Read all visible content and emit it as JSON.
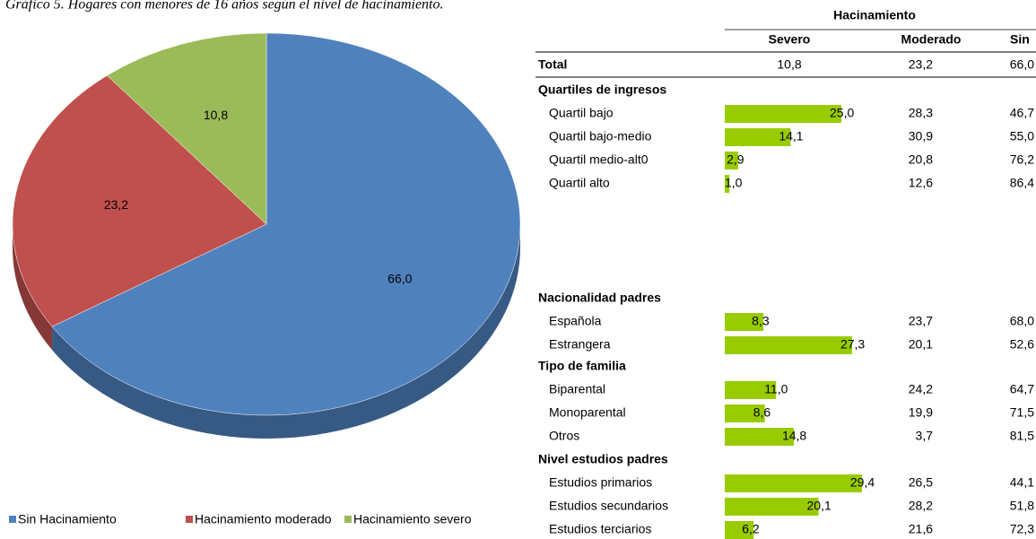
{
  "title": "Gráfico 5. Hogares con menores de 16 años según el nivel de hacinamiento.",
  "chart_data": {
    "type": "pie",
    "categories": [
      "Sin Hacinamiento",
      "Hacinamiento moderado",
      "Hacinamiento severo"
    ],
    "values": [
      66.0,
      23.2,
      10.8
    ],
    "value_labels": [
      "66,0",
      "23,2",
      "10,8"
    ],
    "colors": [
      "#4f81bd",
      "#c0504d",
      "#9bbb59"
    ],
    "legend": "bottom"
  },
  "table": {
    "group_header": "Hacinamiento",
    "columns": [
      "Severo",
      "Moderado",
      "Sin"
    ],
    "bar_color": "#99cc00",
    "total": {
      "label": "Total",
      "values": [
        10.8,
        23.2,
        66.0
      ],
      "value_labels": [
        "10,8",
        "23,2",
        "66,0"
      ]
    },
    "sections": [
      {
        "title": "Quartiles de ingresos",
        "rows": [
          {
            "label": "Quartil bajo",
            "values": [
              25.0,
              28.3,
              46.7
            ],
            "value_labels": [
              "25,0",
              "28,3",
              "46,7"
            ]
          },
          {
            "label": "Quartil bajo-medio",
            "values": [
              14.1,
              30.9,
              55.0
            ],
            "value_labels": [
              "14,1",
              "30,9",
              "55,0"
            ]
          },
          {
            "label": "Quartil medio-alt0",
            "values": [
              2.9,
              20.8,
              76.2
            ],
            "value_labels": [
              "2,9",
              "20,8",
              "76,2"
            ]
          },
          {
            "label": "Quartil alto",
            "values": [
              1.0,
              12.6,
              86.4
            ],
            "value_labels": [
              "1,0",
              "12,6",
              "86,4"
            ]
          }
        ]
      },
      {
        "title": "Nacionalidad padres",
        "rows": [
          {
            "label": "Española",
            "values": [
              8.3,
              23.7,
              68.0
            ],
            "value_labels": [
              "8,3",
              "23,7",
              "68,0"
            ]
          },
          {
            "label": "Estrangera",
            "values": [
              27.3,
              20.1,
              52.6
            ],
            "value_labels": [
              "27,3",
              "20,1",
              "52,6"
            ]
          }
        ]
      },
      {
        "title": "Tipo de familia",
        "rows": [
          {
            "label": "Biparental",
            "values": [
              11.0,
              24.2,
              64.7
            ],
            "value_labels": [
              "11,0",
              "24,2",
              "64,7"
            ]
          },
          {
            "label": "Monoparental",
            "values": [
              8.6,
              19.9,
              71.5
            ],
            "value_labels": [
              "8,6",
              "19,9",
              "71,5"
            ]
          },
          {
            "label": "Otros",
            "values": [
              14.8,
              3.7,
              81.5
            ],
            "value_labels": [
              "14,8",
              "3,7",
              "81,5"
            ]
          }
        ]
      },
      {
        "title": "Nivel estudios padres",
        "rows": [
          {
            "label": "Estudios primarios",
            "values": [
              29.4,
              26.5,
              44.1
            ],
            "value_labels": [
              "29,4",
              "26,5",
              "44,1"
            ]
          },
          {
            "label": "Estudios secundarios",
            "values": [
              20.1,
              28.2,
              51.8
            ],
            "value_labels": [
              "20,1",
              "28,2",
              "51,8"
            ]
          },
          {
            "label": "Estudios terciarios",
            "values": [
              6.2,
              21.6,
              72.3
            ],
            "value_labels": [
              "6,2",
              "21,6",
              "72,3"
            ]
          }
        ]
      }
    ]
  }
}
